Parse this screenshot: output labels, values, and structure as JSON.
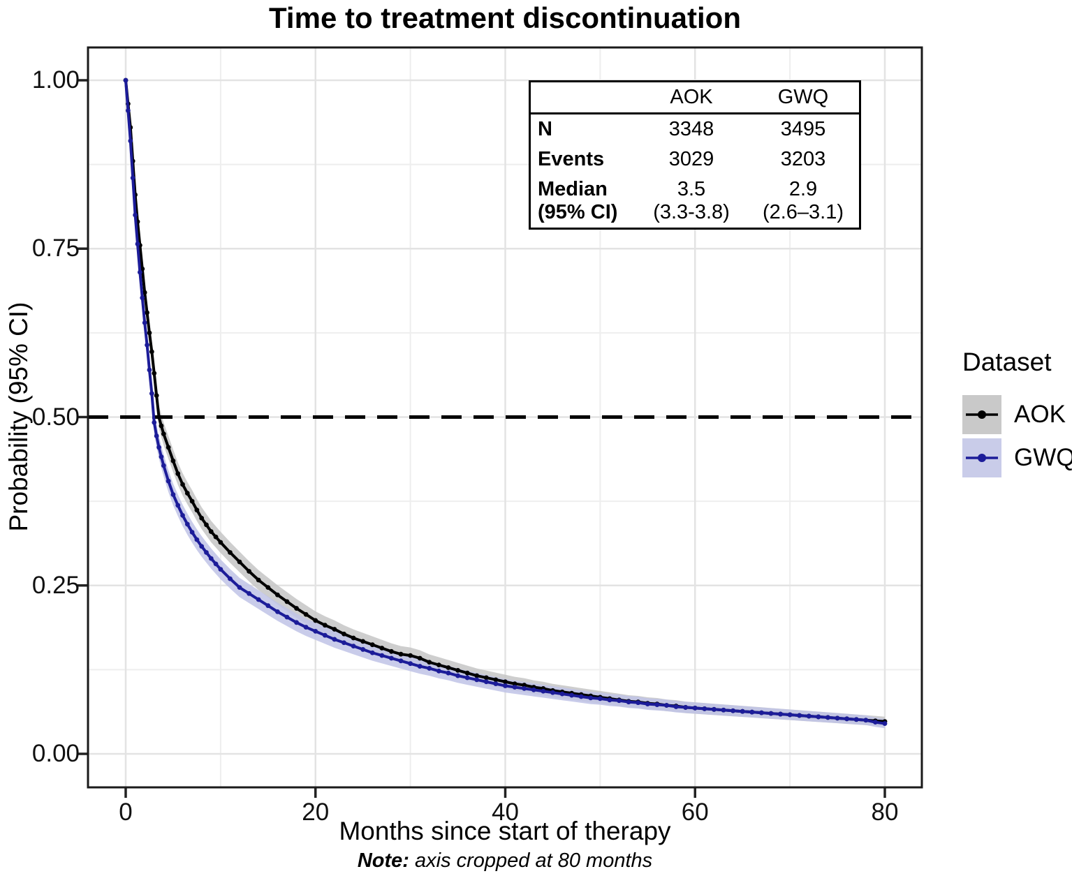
{
  "title": "Time to treatment discontinuation",
  "axes": {
    "x": {
      "label": "Months since start of therapy",
      "tick_labels": [
        "0",
        "20",
        "40",
        "60",
        "80"
      ]
    },
    "y": {
      "label": "Probability (95% CI)",
      "tick_labels": [
        "1.00",
        "0.75",
        "0.50",
        "0.25",
        "0.00"
      ]
    }
  },
  "footnote": {
    "prefix": "Note:",
    "text": " axis cropped at 80 months"
  },
  "stats_table": {
    "headers": {
      "aok": "AOK",
      "gwq": "GWQ"
    },
    "rows": [
      {
        "label": "N",
        "aok": "3348",
        "gwq": "3495"
      },
      {
        "label": "Events",
        "aok": "3029",
        "gwq": "3203"
      }
    ],
    "median_row": {
      "label1": "Median",
      "label2": "(95% CI)",
      "aok1": "3.5",
      "aok2": "(3.3-3.8)",
      "gwq1": "2.9",
      "gwq2": "(2.6–3.1)"
    }
  },
  "legend": {
    "title": "Dataset",
    "items": [
      {
        "label": "AOK",
        "line_color": "#000000",
        "swatch_color": "#c9c9c9"
      },
      {
        "label": "GWQ",
        "line_color": "#1c1c99",
        "swatch_color": "#c9cce9"
      }
    ]
  },
  "chart_data": {
    "type": "line",
    "title": "Time to treatment discontinuation",
    "xlabel": "Months since start of therapy",
    "ylabel": "Probability (95% CI)",
    "xlim": [
      -4,
      84
    ],
    "ylim": [
      -0.05,
      1.05
    ],
    "x_ticks": [
      0,
      20,
      40,
      60,
      80
    ],
    "y_ticks": [
      1.0,
      0.75,
      0.5,
      0.25,
      0.0
    ],
    "x_minor": [
      10,
      30,
      50,
      70
    ],
    "y_minor": [
      0.875,
      0.625,
      0.375,
      0.125
    ],
    "grid": true,
    "grid_major_color": "#e3e3e3",
    "grid_minor_color": "#eeeeee",
    "panel_border_color": "#1a1a1a",
    "reference_line": {
      "y": 0.5,
      "style": "dashed",
      "color": "#000000"
    },
    "legend_position": "right",
    "series": [
      {
        "name": "AOK",
        "color": "#000000",
        "ci_color": "#c6c6c6",
        "n": 3348,
        "events": 3029,
        "median": 3.5,
        "median_ci": "3.3-3.8",
        "points": [
          [
            0,
            1.0
          ],
          [
            0.25,
            0.965
          ],
          [
            0.5,
            0.93
          ],
          [
            0.75,
            0.88
          ],
          [
            1,
            0.83
          ],
          [
            1.25,
            0.79
          ],
          [
            1.5,
            0.755
          ],
          [
            1.75,
            0.72
          ],
          [
            2,
            0.685
          ],
          [
            2.25,
            0.655
          ],
          [
            2.5,
            0.625
          ],
          [
            2.75,
            0.597
          ],
          [
            3,
            0.565
          ],
          [
            3.25,
            0.532
          ],
          [
            3.5,
            0.5
          ],
          [
            3.75,
            0.487
          ],
          [
            4,
            0.475
          ],
          [
            4.5,
            0.455
          ],
          [
            5,
            0.435
          ],
          [
            5.5,
            0.416
          ],
          [
            6,
            0.4
          ],
          [
            6.5,
            0.387
          ],
          [
            7,
            0.375
          ],
          [
            7.5,
            0.362
          ],
          [
            8,
            0.35
          ],
          [
            8.5,
            0.34
          ],
          [
            9,
            0.33
          ],
          [
            9.5,
            0.322
          ],
          [
            10,
            0.314
          ],
          [
            11,
            0.299
          ],
          [
            12,
            0.285
          ],
          [
            13,
            0.271
          ],
          [
            14,
            0.258
          ],
          [
            15,
            0.247
          ],
          [
            16,
            0.236
          ],
          [
            17,
            0.226
          ],
          [
            18,
            0.216
          ],
          [
            19,
            0.207
          ],
          [
            20,
            0.198
          ],
          [
            21,
            0.191
          ],
          [
            22,
            0.185
          ],
          [
            23,
            0.178
          ],
          [
            24,
            0.172
          ],
          [
            25,
            0.167
          ],
          [
            26,
            0.162
          ],
          [
            27,
            0.157
          ],
          [
            28,
            0.152
          ],
          [
            29,
            0.148
          ],
          [
            30,
            0.146
          ],
          [
            31,
            0.142
          ],
          [
            32,
            0.136
          ],
          [
            33,
            0.132
          ],
          [
            34,
            0.128
          ],
          [
            35,
            0.124
          ],
          [
            36,
            0.12
          ],
          [
            37,
            0.116
          ],
          [
            38,
            0.113
          ],
          [
            39,
            0.11
          ],
          [
            40,
            0.107
          ],
          [
            41,
            0.104
          ],
          [
            42,
            0.102
          ],
          [
            43,
            0.099
          ],
          [
            44,
            0.097
          ],
          [
            45,
            0.094
          ],
          [
            46,
            0.092
          ],
          [
            47,
            0.09
          ],
          [
            48,
            0.088
          ],
          [
            49,
            0.086
          ],
          [
            50,
            0.084
          ],
          [
            51,
            0.082
          ],
          [
            52,
            0.08
          ],
          [
            53,
            0.078
          ],
          [
            54,
            0.077
          ],
          [
            55,
            0.075
          ],
          [
            56,
            0.074
          ],
          [
            57,
            0.072
          ],
          [
            58,
            0.071
          ],
          [
            59,
            0.069
          ],
          [
            60,
            0.068
          ],
          [
            61,
            0.067
          ],
          [
            62,
            0.066
          ],
          [
            63,
            0.065
          ],
          [
            64,
            0.064
          ],
          [
            65,
            0.063
          ],
          [
            66,
            0.062
          ],
          [
            67,
            0.061
          ],
          [
            68,
            0.06
          ],
          [
            69,
            0.059
          ],
          [
            70,
            0.058
          ],
          [
            71,
            0.057
          ],
          [
            72,
            0.056
          ],
          [
            73,
            0.055
          ],
          [
            74,
            0.054
          ],
          [
            75,
            0.053
          ],
          [
            76,
            0.052
          ],
          [
            77,
            0.051
          ],
          [
            78,
            0.05
          ],
          [
            79,
            0.049
          ],
          [
            80,
            0.048
          ]
        ]
      },
      {
        "name": "GWQ",
        "color": "#1c1c99",
        "ci_color": "#bfc3e6",
        "n": 3495,
        "events": 3203,
        "median": 2.9,
        "median_ci": "2.6–3.1",
        "points": [
          [
            0,
            1.0
          ],
          [
            0.25,
            0.955
          ],
          [
            0.5,
            0.91
          ],
          [
            0.75,
            0.855
          ],
          [
            1,
            0.8
          ],
          [
            1.25,
            0.757
          ],
          [
            1.5,
            0.715
          ],
          [
            1.75,
            0.677
          ],
          [
            2,
            0.64
          ],
          [
            2.25,
            0.607
          ],
          [
            2.5,
            0.57
          ],
          [
            2.75,
            0.535
          ],
          [
            3,
            0.492
          ],
          [
            3.25,
            0.472
          ],
          [
            3.5,
            0.455
          ],
          [
            3.75,
            0.441
          ],
          [
            4,
            0.428
          ],
          [
            4.5,
            0.405
          ],
          [
            5,
            0.385
          ],
          [
            5.5,
            0.369
          ],
          [
            6,
            0.354
          ],
          [
            6.5,
            0.341
          ],
          [
            7,
            0.329
          ],
          [
            7.5,
            0.318
          ],
          [
            8,
            0.308
          ],
          [
            8.5,
            0.299
          ],
          [
            9,
            0.29
          ],
          [
            9.5,
            0.282
          ],
          [
            10,
            0.274
          ],
          [
            11,
            0.26
          ],
          [
            12,
            0.247
          ],
          [
            13,
            0.238
          ],
          [
            14,
            0.229
          ],
          [
            15,
            0.22
          ],
          [
            16,
            0.211
          ],
          [
            17,
            0.203
          ],
          [
            18,
            0.195
          ],
          [
            19,
            0.188
          ],
          [
            20,
            0.182
          ],
          [
            21,
            0.176
          ],
          [
            22,
            0.17
          ],
          [
            23,
            0.165
          ],
          [
            24,
            0.16
          ],
          [
            25,
            0.155
          ],
          [
            26,
            0.15
          ],
          [
            27,
            0.146
          ],
          [
            28,
            0.142
          ],
          [
            29,
            0.138
          ],
          [
            30,
            0.134
          ],
          [
            31,
            0.13
          ],
          [
            32,
            0.127
          ],
          [
            33,
            0.123
          ],
          [
            34,
            0.12
          ],
          [
            35,
            0.116
          ],
          [
            36,
            0.113
          ],
          [
            37,
            0.11
          ],
          [
            38,
            0.107
          ],
          [
            39,
            0.104
          ],
          [
            40,
            0.101
          ],
          [
            41,
            0.099
          ],
          [
            42,
            0.097
          ],
          [
            43,
            0.095
          ],
          [
            44,
            0.093
          ],
          [
            45,
            0.091
          ],
          [
            46,
            0.089
          ],
          [
            47,
            0.087
          ],
          [
            48,
            0.085
          ],
          [
            49,
            0.083
          ],
          [
            50,
            0.082
          ],
          [
            51,
            0.08
          ],
          [
            52,
            0.079
          ],
          [
            53,
            0.077
          ],
          [
            54,
            0.076
          ],
          [
            55,
            0.074
          ],
          [
            56,
            0.073
          ],
          [
            57,
            0.072
          ],
          [
            58,
            0.07
          ],
          [
            59,
            0.069
          ],
          [
            60,
            0.068
          ],
          [
            61,
            0.067
          ],
          [
            62,
            0.066
          ],
          [
            63,
            0.065
          ],
          [
            64,
            0.064
          ],
          [
            65,
            0.063
          ],
          [
            66,
            0.062
          ],
          [
            67,
            0.061
          ],
          [
            68,
            0.06
          ],
          [
            69,
            0.059
          ],
          [
            70,
            0.058
          ],
          [
            71,
            0.057
          ],
          [
            72,
            0.056
          ],
          [
            73,
            0.055
          ],
          [
            74,
            0.054
          ],
          [
            75,
            0.053
          ],
          [
            76,
            0.052
          ],
          [
            77,
            0.051
          ],
          [
            78,
            0.05
          ],
          [
            79,
            0.047
          ],
          [
            80,
            0.045
          ]
        ]
      }
    ]
  }
}
